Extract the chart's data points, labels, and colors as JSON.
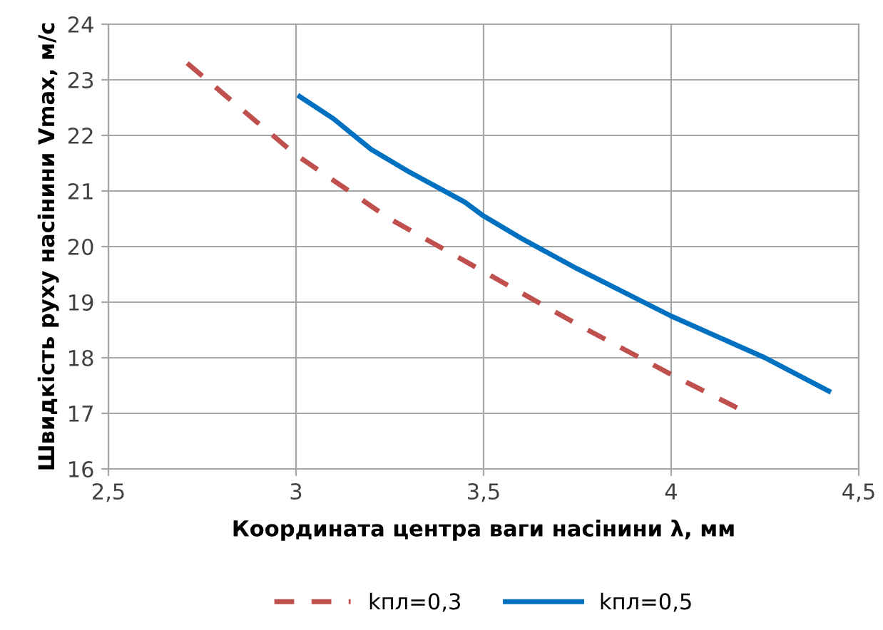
{
  "chart_data": {
    "type": "line",
    "xlabel": "Координата центра ваги насінини λ, мм",
    "ylabel": "Швидкість руху насінини Vmax, м/с",
    "xlim": [
      2.5,
      4.5
    ],
    "xticks": [
      {
        "value": 2.5,
        "label": "2,5"
      },
      3,
      {
        "value": 3.5,
        "label": "3,5"
      },
      4,
      {
        "value": 4.5,
        "label": "4,5"
      }
    ],
    "ylim": [
      16,
      24
    ],
    "yticks": [
      16,
      17,
      18,
      19,
      20,
      21,
      22,
      23,
      24
    ],
    "grid": true,
    "legend": "bottom",
    "series": [
      {
        "name": "kпл=0,3",
        "color": "#c0504d",
        "line_style": "dashed",
        "x": [
          2.71,
          2.85,
          3.0,
          3.25,
          3.5,
          3.75,
          4.0,
          4.19
        ],
        "values": [
          23.3,
          22.5,
          21.65,
          20.5,
          19.55,
          18.6,
          17.7,
          17.05
        ]
      },
      {
        "name": "kпл=0,5",
        "color": "#0070c0",
        "line_style": "solid",
        "x": [
          3.01,
          3.1,
          3.2,
          3.3,
          3.45,
          3.5,
          3.6,
          3.75,
          4.0,
          4.25,
          4.42
        ],
        "values": [
          22.7,
          22.3,
          21.75,
          21.35,
          20.8,
          20.55,
          20.15,
          19.6,
          18.75,
          18.0,
          17.4
        ]
      }
    ]
  }
}
